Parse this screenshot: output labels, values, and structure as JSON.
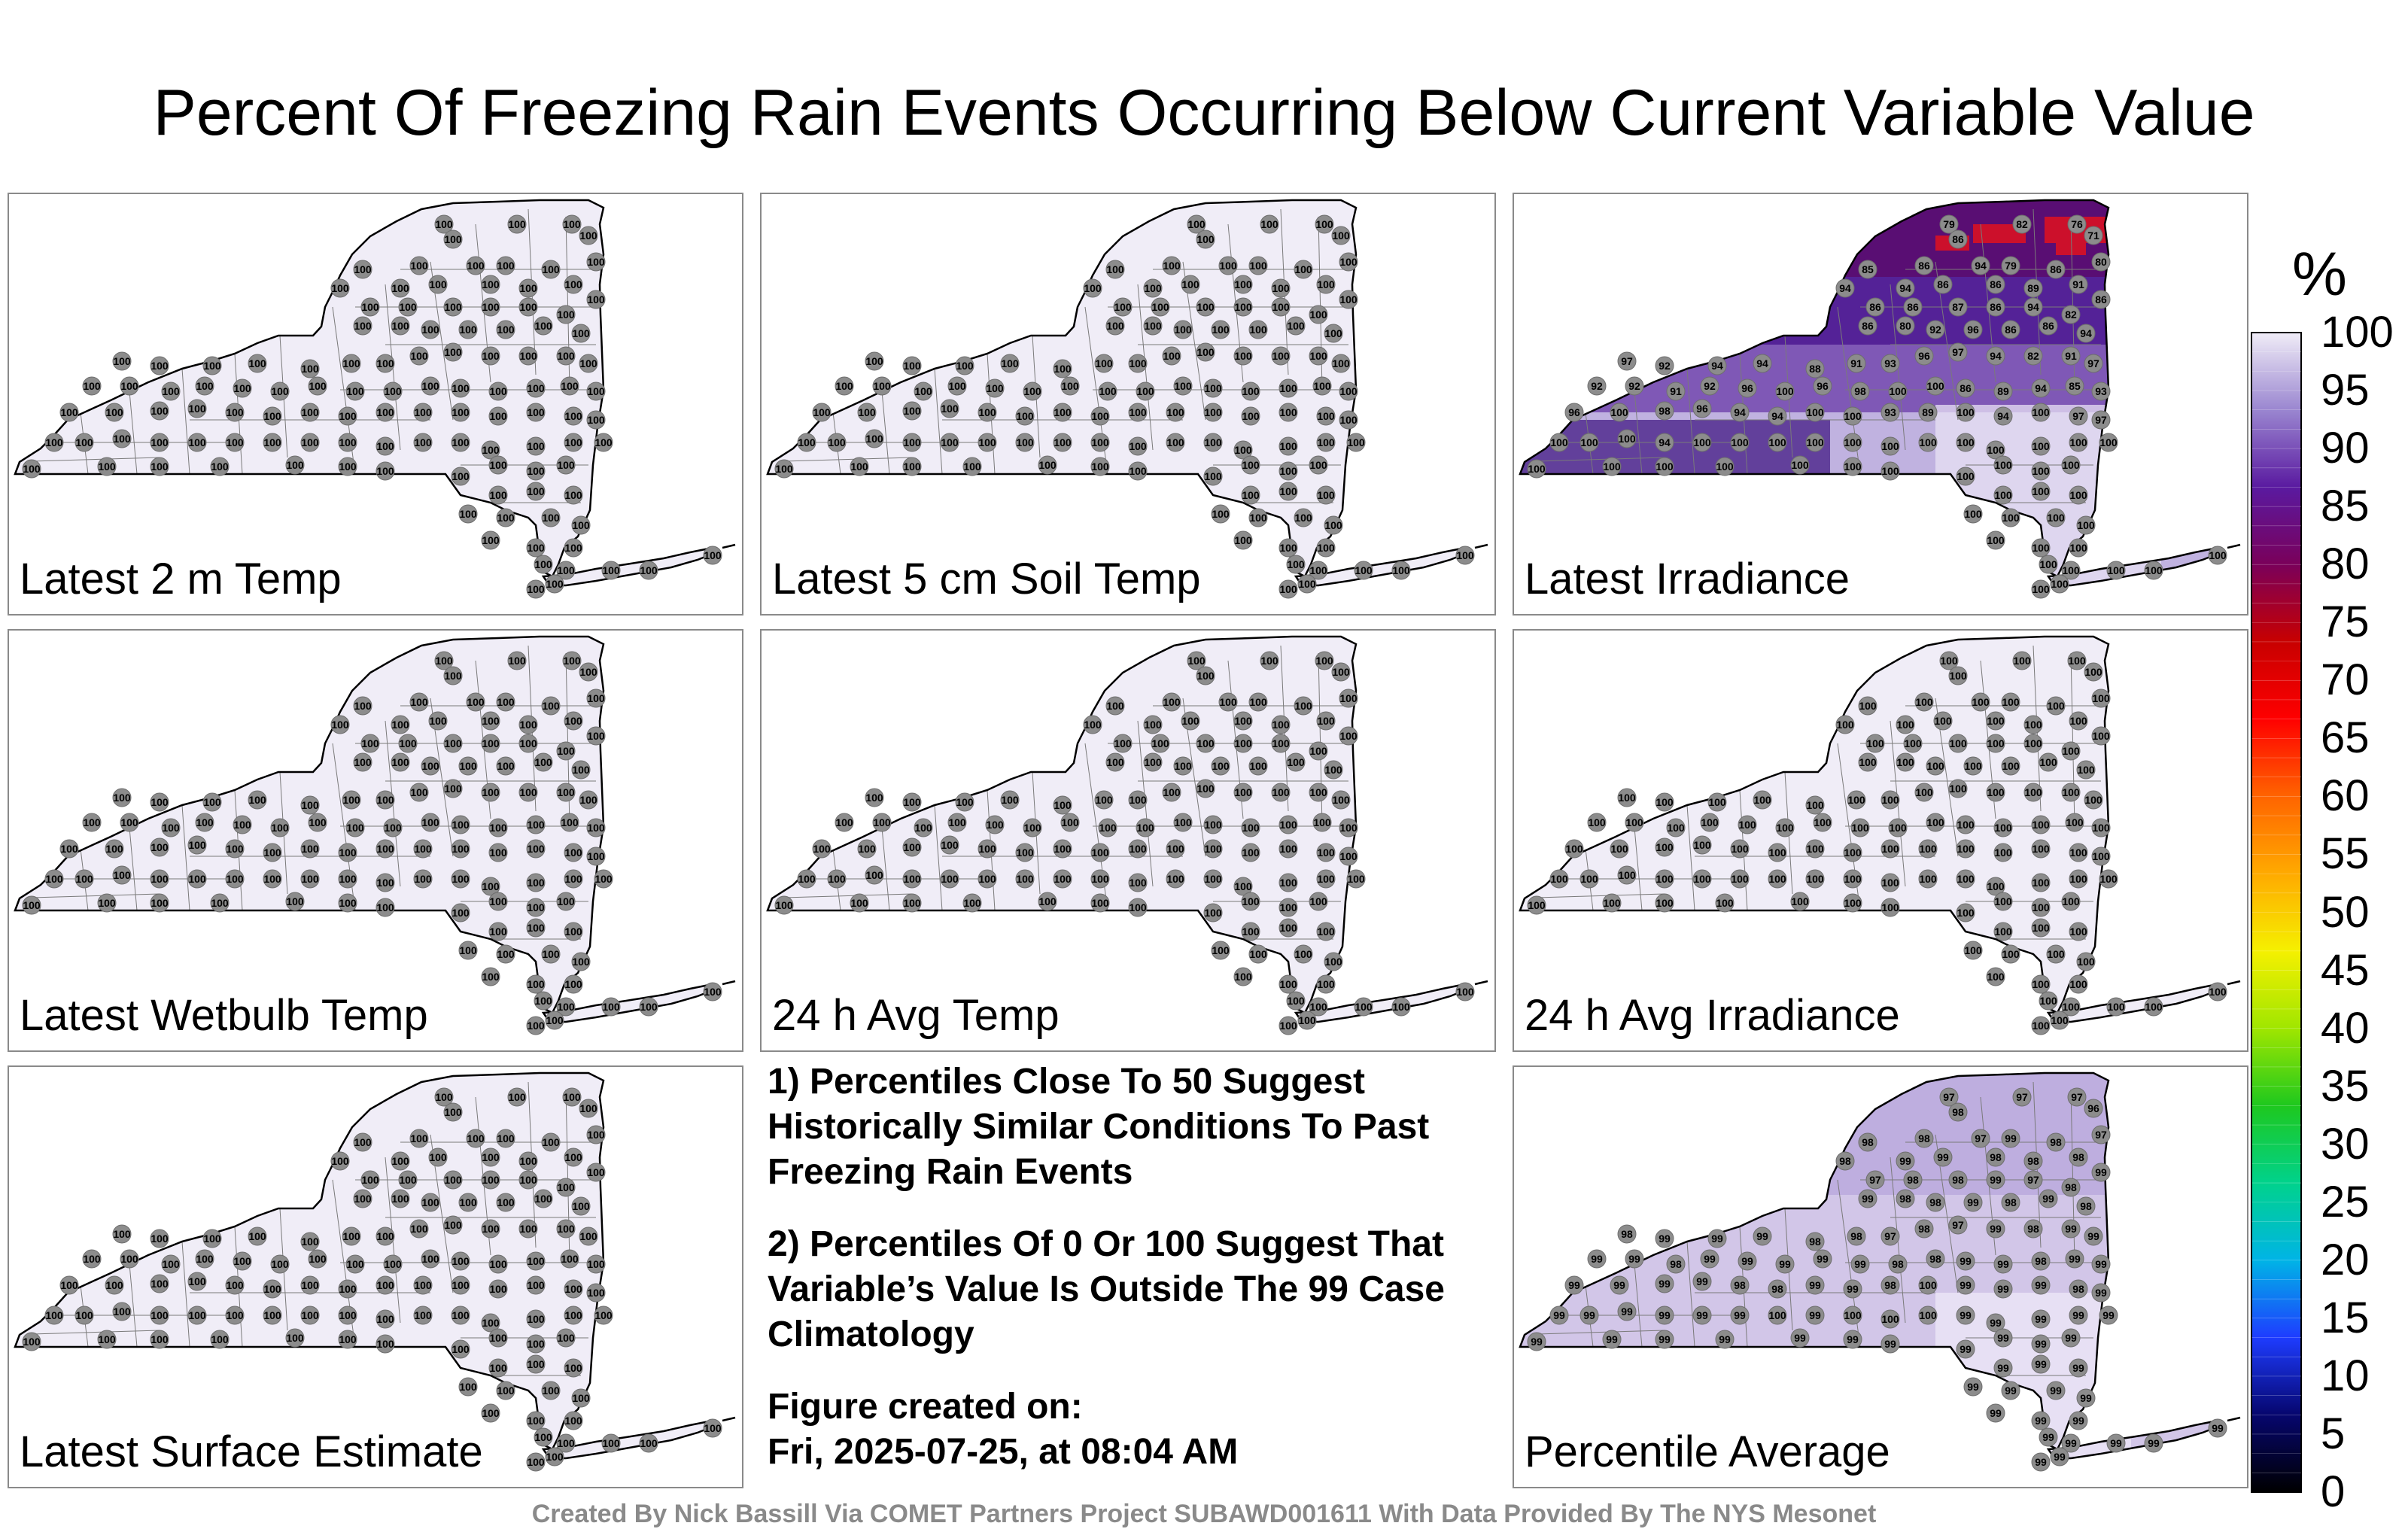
{
  "title": "Percent Of Freezing Rain Events Occurring Below Current Variable Value",
  "panels": [
    {
      "label": "Latest 2 m Temp",
      "fill": "#f0edf7",
      "mode": "uniform",
      "value": "100"
    },
    {
      "label": "Latest 5 cm Soil Temp",
      "fill": "#f0edf7",
      "mode": "uniform",
      "value": "100"
    },
    {
      "label": "Latest Irradiance",
      "fill": "#b7a7d9",
      "mode": "irradiance",
      "value": "100"
    },
    {
      "label": "Latest Wetbulb Temp",
      "fill": "#f0edf7",
      "mode": "uniform",
      "value": "100"
    },
    {
      "label": "24 h Avg Temp",
      "fill": "#f0edf7",
      "mode": "uniform",
      "value": "100"
    },
    {
      "label": "24 h Avg Irradiance",
      "fill": "#f0edf7",
      "mode": "uniform",
      "value": "100"
    },
    {
      "label": "Latest Surface Estimate",
      "fill": "#f0edf7",
      "mode": "uniform",
      "value": "100"
    },
    {
      "label": "Percentile Average",
      "fill": "#d2c6e8",
      "mode": "average",
      "value": "99"
    }
  ],
  "notes": {
    "note1": "1) Percentiles Close To 50 Suggest Historically Similar Conditions To Past Freezing Rain Events",
    "note2": "2) Percentiles Of 0 Or 100 Suggest That Variable’s Value Is Outside The 99 Case Climatology",
    "created_label": "Figure created on:",
    "created_value": "Fri, 2025-07-25, at 08:04 AM"
  },
  "footer": "Created By Nick Bassill Via COMET Partners Project SUBAWD001611 With Data Provided By The NYS Mesonet",
  "colorbar": {
    "unit": "%",
    "ticks": [
      "100",
      "95",
      "90",
      "85",
      "80",
      "75",
      "70",
      "65",
      "60",
      "55",
      "50",
      "45",
      "40",
      "35",
      "30",
      "25",
      "20",
      "15",
      "10",
      "5",
      "0"
    ],
    "range": [
      0,
      100
    ],
    "colors": [
      "#000000",
      "#06066e",
      "#1e3cff",
      "#00b4e6",
      "#00d28c",
      "#1ec81e",
      "#a0e600",
      "#f5f000",
      "#ffaa00",
      "#ff6400",
      "#ff0000",
      "#c80000",
      "#7a005a",
      "#5a1aa0",
      "#9a86d0",
      "#f0edf7"
    ]
  },
  "station_values": {
    "irradiance": [
      "79",
      "82",
      "76",
      "71",
      "86",
      "80",
      "85",
      "86",
      "94",
      "79",
      "86",
      "94",
      "94",
      "86",
      "86",
      "89",
      "91",
      "86",
      "86",
      "86",
      "87",
      "86",
      "94",
      "82",
      "86",
      "80",
      "92",
      "96",
      "86",
      "86",
      "94",
      "97",
      "92",
      "94",
      "94",
      "88",
      "91",
      "93",
      "96",
      "97",
      "94",
      "82",
      "91",
      "97",
      "92",
      "92",
      "91",
      "92",
      "96",
      "100",
      "96",
      "98",
      "100",
      "100",
      "86",
      "89",
      "94",
      "85",
      "93",
      "96",
      "100",
      "98",
      "96",
      "94",
      "94",
      "100",
      "100",
      "93",
      "89",
      "100",
      "94",
      "100",
      "97",
      "97",
      "100",
      "100",
      "100",
      "94",
      "100",
      "100",
      "100",
      "100",
      "100"
    ],
    "average": [
      "97",
      "97",
      "97",
      "96",
      "98",
      "97",
      "98",
      "98",
      "97",
      "99",
      "98",
      "98",
      "99",
      "99",
      "98",
      "98",
      "98",
      "99",
      "97",
      "98",
      "98",
      "99",
      "97",
      "98",
      "99",
      "98",
      "98",
      "99",
      "98",
      "99",
      "98",
      "98",
      "99",
      "99",
      "99",
      "98",
      "98",
      "97",
      "98",
      "97",
      "99",
      "98",
      "99",
      "99",
      "99",
      "99",
      "98",
      "99",
      "99",
      "99",
      "99",
      "99",
      "98",
      "98",
      "99",
      "99",
      "98",
      "99",
      "99",
      "99",
      "99",
      "99",
      "99",
      "98",
      "98",
      "99",
      "99",
      "98",
      "100",
      "99",
      "99",
      "99",
      "98",
      "99",
      "99",
      "99",
      "99",
      "99",
      "99",
      "99",
      "100",
      "99",
      "100",
      "100",
      "100"
    ]
  }
}
